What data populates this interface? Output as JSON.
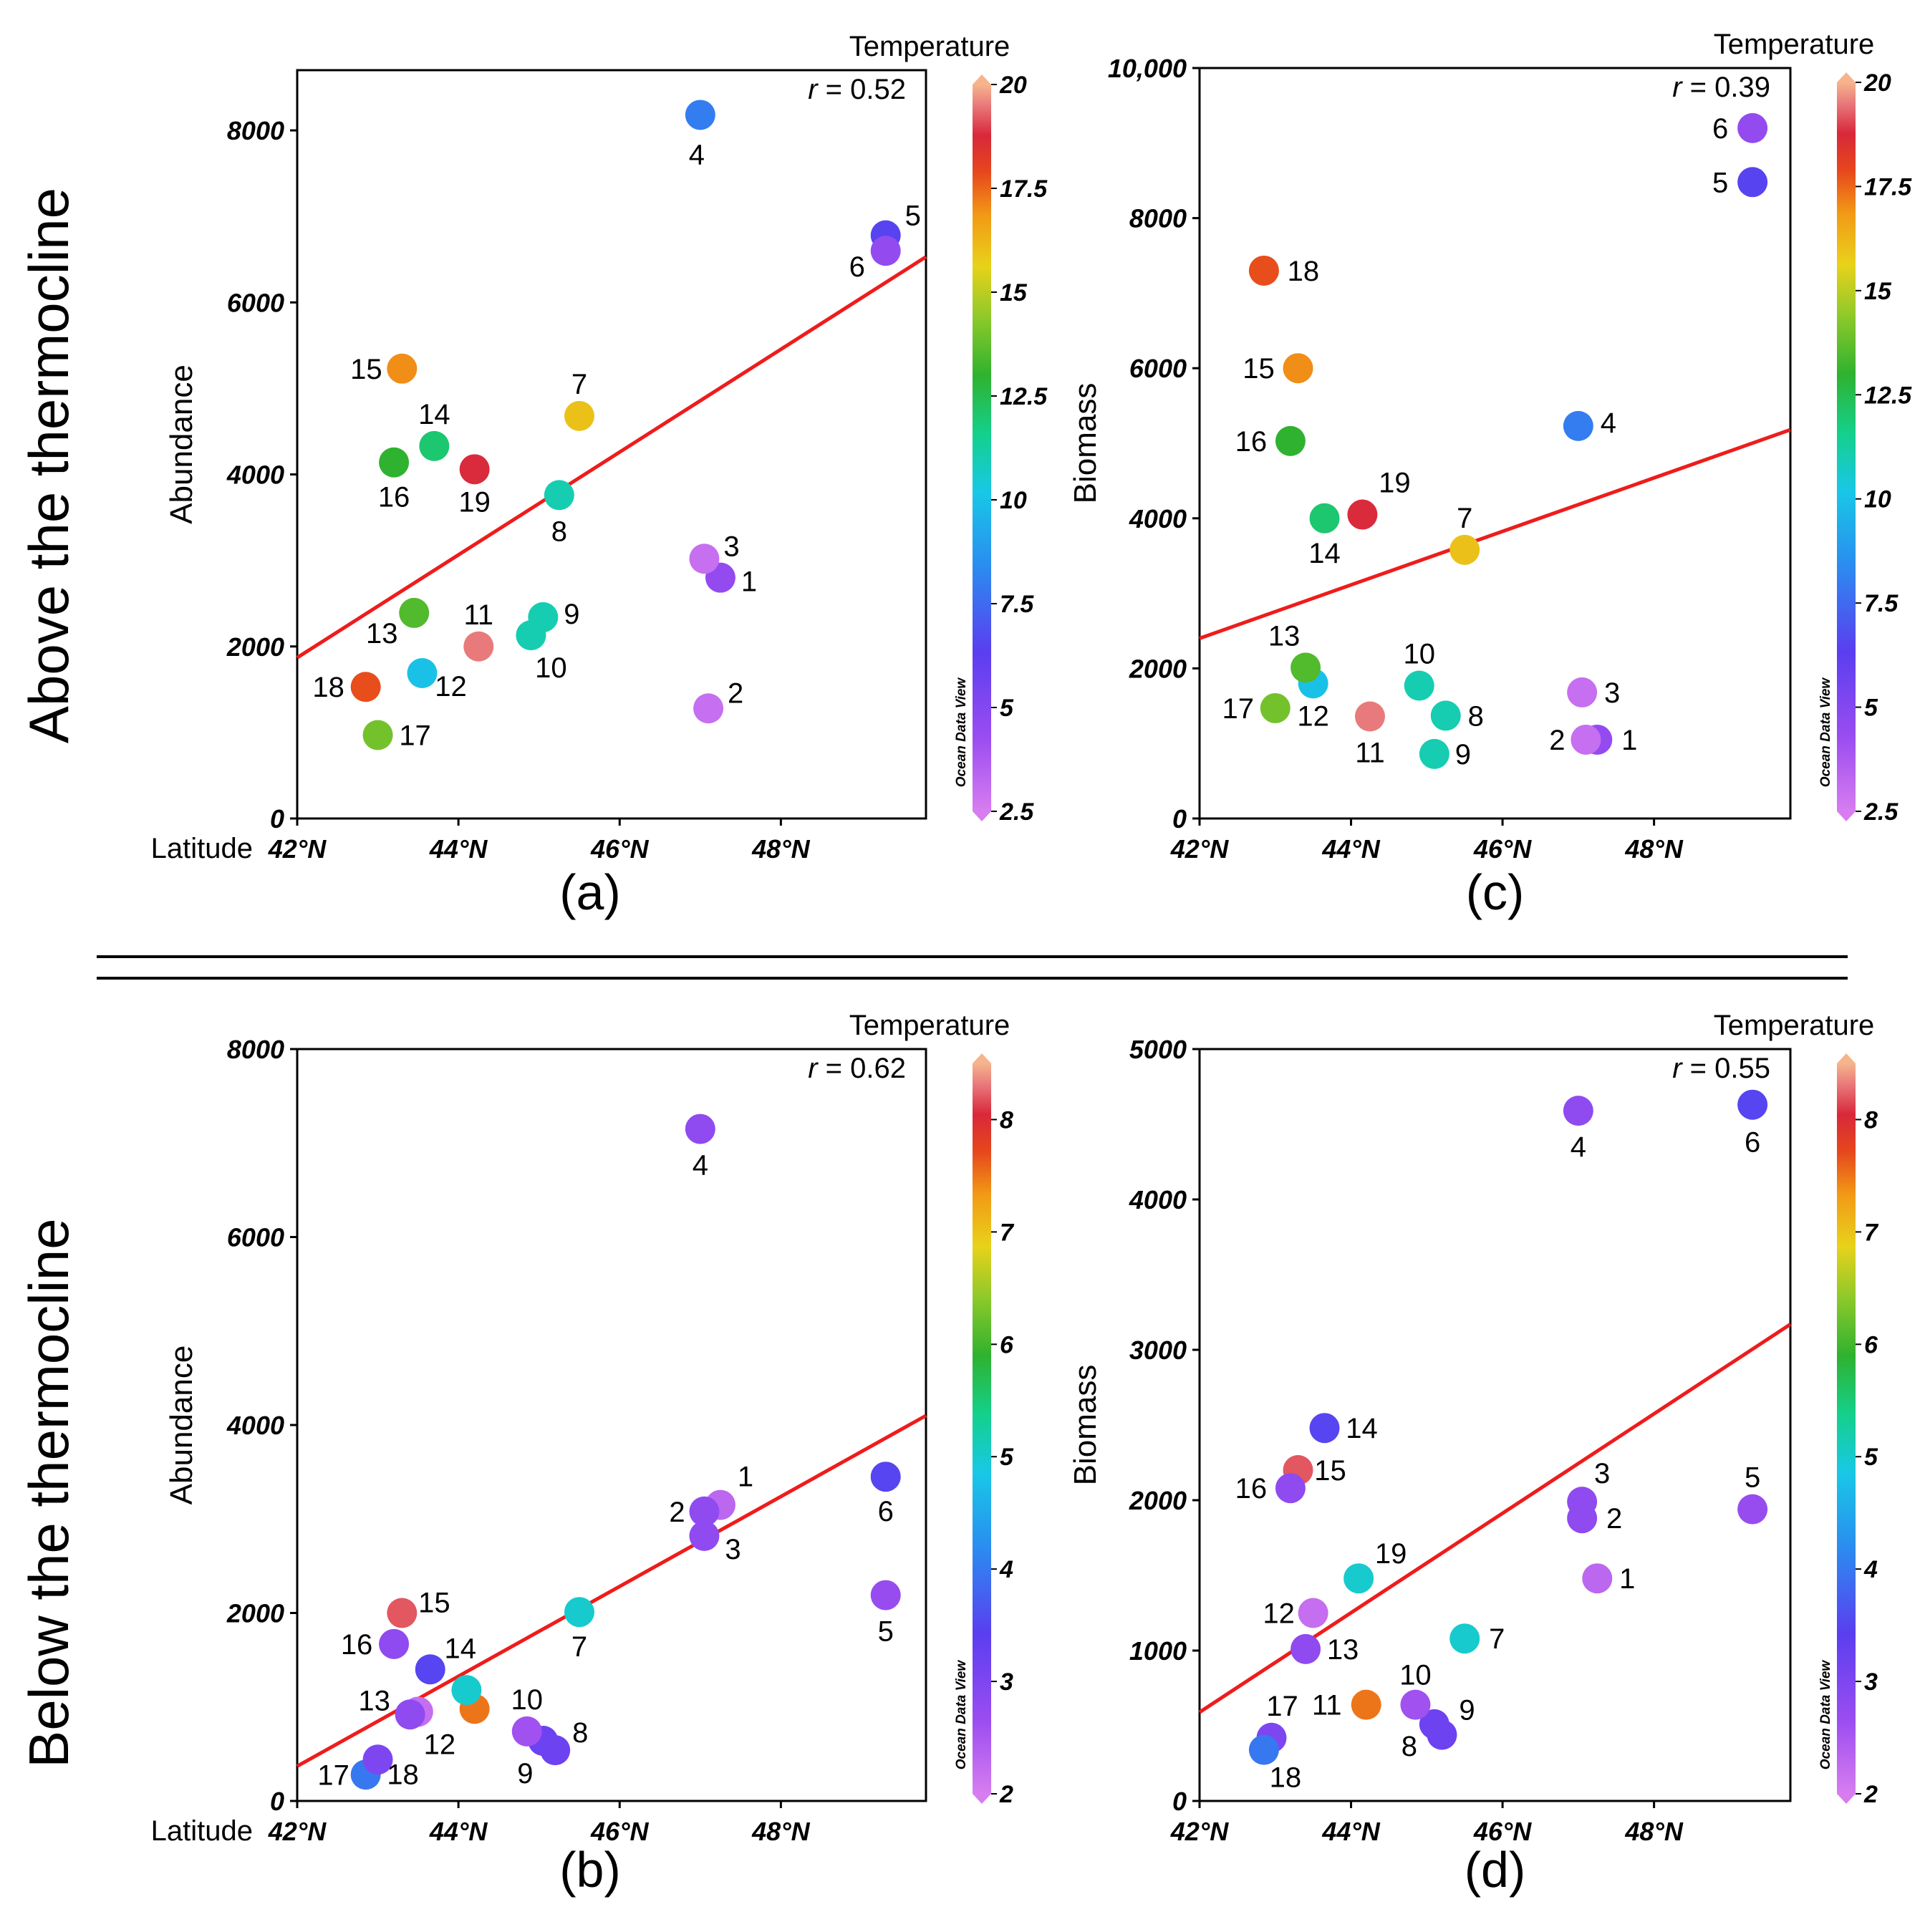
{
  "sections": {
    "top": "Above the thermocline",
    "bottom": "Below the thermocline"
  },
  "chart_data": [
    {
      "id": "a",
      "type": "scatter",
      "panel_label": "(a)",
      "ylabel": "Abundance",
      "xlabel_prefix": "Latitude",
      "xticks": [
        "42°N",
        "44°N",
        "46°N",
        "48°N"
      ],
      "xlim": [
        42,
        49.8
      ],
      "ylim": [
        0,
        8700
      ],
      "yticks": [
        "0",
        "2000",
        "4000",
        "6000",
        "8000"
      ],
      "r_prefix": "r",
      "r_text": "= 0.52",
      "colorbar": {
        "title": "Temperature",
        "ticks": [
          "2.5",
          "5",
          "7.5",
          "10",
          "12.5",
          "15",
          "17.5",
          "20"
        ],
        "range": [
          2.5,
          20
        ],
        "credit": "Ocean Data View"
      },
      "fit": {
        "x": [
          42,
          49.8
        ],
        "y": [
          1870,
          6530
        ]
      },
      "points": [
        {
          "label": "1",
          "lat": 47.25,
          "value": 2800,
          "temp": 4.5
        },
        {
          "label": "2",
          "lat": 47.1,
          "value": 1280,
          "temp": 3.0
        },
        {
          "label": "3",
          "lat": 47.05,
          "value": 3020,
          "temp": 3.0
        },
        {
          "label": "4",
          "lat": 47.0,
          "value": 8180,
          "temp": 8.0
        },
        {
          "label": "5",
          "lat": 49.3,
          "value": 6780,
          "temp": 6.5
        },
        {
          "label": "6",
          "lat": 49.3,
          "value": 6600,
          "temp": 4.5
        },
        {
          "label": "7",
          "lat": 45.5,
          "value": 4680,
          "temp": 16.0
        },
        {
          "label": "8",
          "lat": 45.25,
          "value": 3760,
          "temp": 11.0
        },
        {
          "label": "9",
          "lat": 45.05,
          "value": 2340,
          "temp": 11.0
        },
        {
          "label": "10",
          "lat": 44.9,
          "value": 2130,
          "temp": 11.0
        },
        {
          "label": "11",
          "lat": 44.25,
          "value": 2000,
          "temp": 19.5
        },
        {
          "label": "12",
          "lat": 43.55,
          "value": 1690,
          "temp": 10.0
        },
        {
          "label": "13",
          "lat": 43.45,
          "value": 2390,
          "temp": 13.5
        },
        {
          "label": "14",
          "lat": 43.7,
          "value": 4330,
          "temp": 12.0
        },
        {
          "label": "15",
          "lat": 43.3,
          "value": 5230,
          "temp": 17.0
        },
        {
          "label": "16",
          "lat": 43.2,
          "value": 4140,
          "temp": 13.0
        },
        {
          "label": "17",
          "lat": 43.0,
          "value": 970,
          "temp": 14.0
        },
        {
          "label": "18",
          "lat": 42.85,
          "value": 1530,
          "temp": 17.8
        },
        {
          "label": "19",
          "lat": 44.2,
          "value": 4060,
          "temp": 18.8
        }
      ]
    },
    {
      "id": "c",
      "type": "scatter",
      "panel_label": "(c)",
      "ylabel": "Biomass",
      "xlabel_prefix": "",
      "xticks": [
        "42°N",
        "44°N",
        "46°N",
        "48°N"
      ],
      "xlim": [
        42,
        49.8
      ],
      "ylim": [
        0,
        10000
      ],
      "yticks": [
        "0",
        "2000",
        "4000",
        "6000",
        "8000",
        "10,000"
      ],
      "r_prefix": "r",
      "r_text": "= 0.39",
      "colorbar": {
        "title": "Temperature",
        "ticks": [
          "2.5",
          "5",
          "7.5",
          "10",
          "12.5",
          "15",
          "17.5",
          "20"
        ],
        "range": [
          2.5,
          20
        ],
        "credit": "Ocean Data View"
      },
      "fit": {
        "x": [
          42,
          49.8
        ],
        "y": [
          2400,
          5180
        ]
      },
      "points": [
        {
          "label": "1",
          "lat": 47.25,
          "value": 1050,
          "temp": 4.5
        },
        {
          "label": "2",
          "lat": 47.1,
          "value": 1050,
          "temp": 3.0
        },
        {
          "label": "3",
          "lat": 47.05,
          "value": 1680,
          "temp": 3.0
        },
        {
          "label": "4",
          "lat": 47.0,
          "value": 5230,
          "temp": 8.0
        },
        {
          "label": "5",
          "lat": 49.3,
          "value": 8480,
          "temp": 6.5
        },
        {
          "label": "6",
          "lat": 49.3,
          "value": 9200,
          "temp": 4.5
        },
        {
          "label": "7",
          "lat": 45.5,
          "value": 3580,
          "temp": 16.0
        },
        {
          "label": "8",
          "lat": 45.25,
          "value": 1370,
          "temp": 11.0
        },
        {
          "label": "9",
          "lat": 45.1,
          "value": 860,
          "temp": 11.0
        },
        {
          "label": "10",
          "lat": 44.9,
          "value": 1770,
          "temp": 11.0
        },
        {
          "label": "11",
          "lat": 44.25,
          "value": 1360,
          "temp": 19.5
        },
        {
          "label": "12",
          "lat": 43.5,
          "value": 1800,
          "temp": 10.0
        },
        {
          "label": "13",
          "lat": 43.4,
          "value": 2010,
          "temp": 13.5
        },
        {
          "label": "14",
          "lat": 43.65,
          "value": 4000,
          "temp": 12.0
        },
        {
          "label": "15",
          "lat": 43.3,
          "value": 6000,
          "temp": 17.0
        },
        {
          "label": "16",
          "lat": 43.2,
          "value": 5030,
          "temp": 13.0
        },
        {
          "label": "17",
          "lat": 43.0,
          "value": 1470,
          "temp": 14.0
        },
        {
          "label": "18",
          "lat": 42.85,
          "value": 7300,
          "temp": 17.8
        },
        {
          "label": "19",
          "lat": 44.15,
          "value": 4050,
          "temp": 18.8
        }
      ]
    },
    {
      "id": "b",
      "type": "scatter",
      "panel_label": "(b)",
      "ylabel": "Abundance",
      "xlabel_prefix": "Latitude",
      "xticks": [
        "42°N",
        "44°N",
        "46°N",
        "48°N"
      ],
      "xlim": [
        42,
        49.8
      ],
      "ylim": [
        0,
        8000
      ],
      "yticks": [
        "0",
        "2000",
        "4000",
        "6000",
        "8000"
      ],
      "r_prefix": "r",
      "r_text": "= 0.62",
      "colorbar": {
        "title": "Temperature",
        "ticks": [
          "2",
          "3",
          "4",
          "5",
          "6",
          "7",
          "8"
        ],
        "range": [
          2,
          8.5
        ],
        "credit": "Ocean Data View"
      },
      "fit": {
        "x": [
          42,
          49.8
        ],
        "y": [
          370,
          4100
        ]
      },
      "points": [
        {
          "label": "1",
          "lat": 47.25,
          "value": 3150,
          "temp": 2.3
        },
        {
          "label": "2",
          "lat": 47.05,
          "value": 3080,
          "temp": 2.8
        },
        {
          "label": "3",
          "lat": 47.05,
          "value": 2820,
          "temp": 2.8
        },
        {
          "label": "4",
          "lat": 47.0,
          "value": 7150,
          "temp": 2.8
        },
        {
          "label": "5",
          "lat": 49.3,
          "value": 2190,
          "temp": 2.7
        },
        {
          "label": "6",
          "lat": 49.3,
          "value": 3450,
          "temp": 3.5
        },
        {
          "label": "7",
          "lat": 45.5,
          "value": 2010,
          "temp": 5.0
        },
        {
          "label": "8",
          "lat": 45.2,
          "value": 540,
          "temp": 3.2
        },
        {
          "label": "9",
          "lat": 45.05,
          "value": 640,
          "temp": 3.2
        },
        {
          "label": "10",
          "lat": 44.85,
          "value": 740,
          "temp": 2.6
        },
        {
          "label": "11",
          "lat": 44.2,
          "value": 980,
          "temp": 7.5
        },
        {
          "label": "12",
          "lat": 43.5,
          "value": 950,
          "temp": 2.2
        },
        {
          "label": "13",
          "lat": 43.4,
          "value": 920,
          "temp": 2.8
        },
        {
          "label": "14",
          "lat": 43.65,
          "value": 1400,
          "temp": 3.5
        },
        {
          "label": "15",
          "lat": 43.3,
          "value": 2000,
          "temp": 8.2
        },
        {
          "label": "16",
          "lat": 43.2,
          "value": 1670,
          "temp": 2.8
        },
        {
          "label": "17",
          "lat": 42.85,
          "value": 280,
          "temp": 4.0
        },
        {
          "label": "18",
          "lat": 43.0,
          "value": 440,
          "temp": 3.0
        },
        {
          "label": "19",
          "lat": 44.1,
          "value": 1180,
          "temp": 5.0
        }
      ]
    },
    {
      "id": "d",
      "type": "scatter",
      "panel_label": "(d)",
      "ylabel": "Biomass",
      "xlabel_prefix": "",
      "xticks": [
        "42°N",
        "44°N",
        "46°N",
        "48°N"
      ],
      "xlim": [
        42,
        49.8
      ],
      "ylim": [
        0,
        5000
      ],
      "yticks": [
        "0",
        "1000",
        "2000",
        "3000",
        "4000",
        "5000"
      ],
      "r_prefix": "r",
      "r_text": "= 0.55",
      "colorbar": {
        "title": "Temperature",
        "ticks": [
          "2",
          "3",
          "4",
          "5",
          "6",
          "7",
          "8"
        ],
        "range": [
          2,
          8.5
        ],
        "credit": "Ocean Data View"
      },
      "fit": {
        "x": [
          42,
          49.8
        ],
        "y": [
          590,
          3170
        ]
      },
      "points": [
        {
          "label": "1",
          "lat": 47.25,
          "value": 1480,
          "temp": 2.3
        },
        {
          "label": "2",
          "lat": 47.05,
          "value": 1880,
          "temp": 2.8
        },
        {
          "label": "3",
          "lat": 47.05,
          "value": 1990,
          "temp": 2.8
        },
        {
          "label": "4",
          "lat": 47.0,
          "value": 4590,
          "temp": 2.8
        },
        {
          "label": "5",
          "lat": 49.3,
          "value": 1940,
          "temp": 2.7
        },
        {
          "label": "6",
          "lat": 49.3,
          "value": 4630,
          "temp": 3.5
        },
        {
          "label": "7",
          "lat": 45.5,
          "value": 1080,
          "temp": 5.0
        },
        {
          "label": "8",
          "lat": 45.1,
          "value": 510,
          "temp": 3.2
        },
        {
          "label": "9",
          "lat": 45.2,
          "value": 440,
          "temp": 3.2
        },
        {
          "label": "10",
          "lat": 44.85,
          "value": 640,
          "temp": 2.6
        },
        {
          "label": "11",
          "lat": 44.2,
          "value": 640,
          "temp": 7.5
        },
        {
          "label": "12",
          "lat": 43.5,
          "value": 1250,
          "temp": 2.2
        },
        {
          "label": "13",
          "lat": 43.4,
          "value": 1010,
          "temp": 2.8
        },
        {
          "label": "14",
          "lat": 43.65,
          "value": 2480,
          "temp": 3.5
        },
        {
          "label": "15",
          "lat": 43.3,
          "value": 2200,
          "temp": 8.2
        },
        {
          "label": "16",
          "lat": 43.2,
          "value": 2080,
          "temp": 2.8
        },
        {
          "label": "17",
          "lat": 42.95,
          "value": 420,
          "temp": 3.0
        },
        {
          "label": "18",
          "lat": 42.85,
          "value": 340,
          "temp": 4.0
        },
        {
          "label": "19",
          "lat": 44.1,
          "value": 1480,
          "temp": 5.0
        }
      ]
    }
  ]
}
